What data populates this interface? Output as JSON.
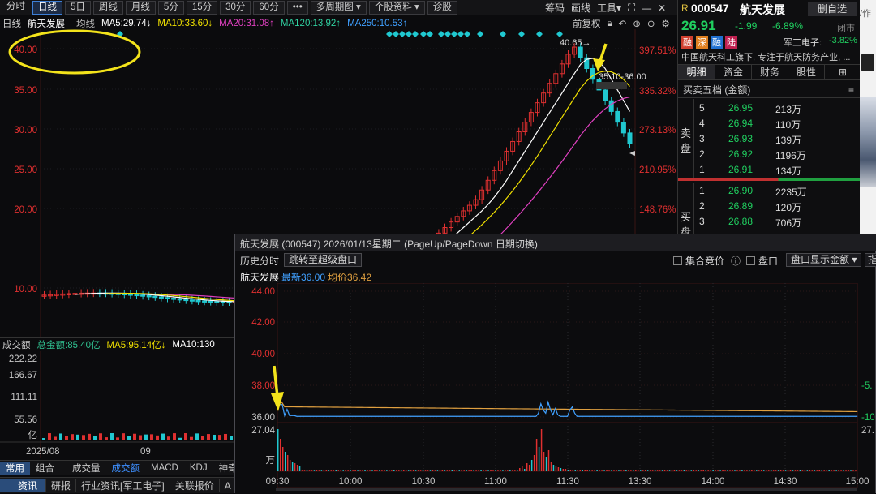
{
  "toolbar": {
    "items": [
      "分时",
      "日线",
      "5日",
      "周线",
      "月线",
      "5分",
      "15分",
      "30分",
      "60分",
      "•••",
      "多周期图 ▾",
      "个股资料 ▾",
      "诊股"
    ],
    "active": 1,
    "right": [
      "筹码",
      "画线",
      "工具▾"
    ]
  },
  "ma_row": {
    "period": "日线",
    "name": "航天发展",
    "mode": "均线",
    "ma5": "MA5:29.74↓",
    "ma10": "MA10:33.60↓",
    "ma20": "MA20:31.08↑",
    "ma120": "MA120:13.92↑",
    "ma250": "MA250:10.53↑",
    "restore": "前复权",
    "colors": {
      "ma5": "#ffffff",
      "ma10": "#f0e000",
      "ma20": "#e040c0",
      "ma120": "#30d0a0",
      "ma250": "#40a0ff"
    }
  },
  "main_chart": {
    "y_left": [
      "40.00",
      "35.00",
      "30.00",
      "25.00",
      "20.00",
      "10.00"
    ],
    "y_right": [
      "397.51%",
      "335.32%",
      "273.13%",
      "210.95%",
      "148.76%"
    ],
    "peak_label": "40.65→",
    "range_label": "35.10-36.00"
  },
  "volume": {
    "title": "成交额",
    "total": "总金额:85.40亿",
    "ma5": "MA5:95.14亿↓",
    "ma10": "MA10:130",
    "y_labels": [
      "222.22",
      "166.67",
      "111.11",
      "55.56",
      "亿"
    ],
    "x_labels": [
      "2025/08",
      "09"
    ]
  },
  "indicator_tabs": {
    "group": [
      "常用",
      "组合"
    ],
    "items": [
      "成交量",
      "成交额",
      "MACD",
      "KDJ",
      "神奇"
    ],
    "active": 1
  },
  "bottom_tabs": [
    "资讯",
    "研报",
    "行业资讯[军工电子]",
    "关联报价",
    "A"
  ],
  "quote": {
    "prefix": "R",
    "code": "000547",
    "name": "航天发展",
    "button": "删自选",
    "price": "26.91",
    "change": "-1.99",
    "pct": "-6.89%",
    "status": "闭市",
    "badges": [
      "融",
      "深",
      "融",
      "陆"
    ],
    "sector": "军工电子:",
    "sector_pct": "-3.82%",
    "desc": "中国航天科工旗下, 专注于航天防务产业, ...",
    "tabs": [
      "明细",
      "资金",
      "财务",
      "股性"
    ],
    "book_title": "买卖五档 (金额)",
    "sell_label": [
      "卖",
      "盘"
    ],
    "buy_label": [
      "买",
      "盘"
    ],
    "asks": [
      {
        "lvl": "5",
        "price": "26.95",
        "vol": "213万"
      },
      {
        "lvl": "4",
        "price": "26.94",
        "vol": "110万"
      },
      {
        "lvl": "3",
        "price": "26.93",
        "vol": "139万"
      },
      {
        "lvl": "2",
        "price": "26.92",
        "vol": "1196万"
      },
      {
        "lvl": "1",
        "price": "26.91",
        "vol": "134万"
      }
    ],
    "bids": [
      {
        "lvl": "1",
        "price": "26.90",
        "vol": "2235万"
      },
      {
        "lvl": "2",
        "price": "26.89",
        "vol": "120万"
      },
      {
        "lvl": "3",
        "price": "26.88",
        "vol": "706万"
      }
    ]
  },
  "popup": {
    "title": "航天发展 (000547)  2026/01/13星期二  (PageUp/PageDown 日期切换)",
    "hist": "历史分时",
    "jump": "跳转至超级盘口",
    "auction": "集合竞价",
    "panel": "盘口",
    "amount": "盘口显示金额 ▾",
    "name": "航天发展",
    "latest": "最新36.00",
    "avg": "均价36.42",
    "y_left": [
      "44.00",
      "42.00",
      "40.00",
      "38.00",
      "36.00"
    ],
    "y_right": [
      "",
      "",
      "",
      "-5.",
      "-10"
    ],
    "vol_top": "27.04",
    "vol_unit": "万",
    "vol_right": "27.",
    "x_labels": [
      "09:30",
      "10:00",
      "10:30",
      "11:00",
      "11:30",
      "13:30",
      "14:00",
      "14:30",
      "15:00"
    ]
  }
}
